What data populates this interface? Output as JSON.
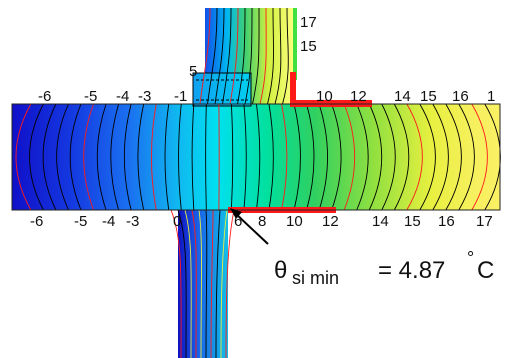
{
  "diagram": {
    "top_labels": [
      "-6",
      "-5",
      "-4",
      "-3",
      "-1",
      "10",
      "12",
      "14",
      "15",
      "16",
      "1"
    ],
    "bottom_labels": [
      "-6",
      "-5",
      "-4",
      "-3",
      "0",
      "6",
      "8",
      "10",
      "12",
      "14",
      "15",
      "16",
      "17"
    ],
    "upper_wall_labels": [
      "17",
      "15"
    ],
    "beam_label": "5",
    "formula": {
      "symbol": "θ",
      "subscript": "si min",
      "equals": "= 4.87",
      "degree": "°",
      "unit": "C"
    },
    "colors": {
      "cold": "#1414d8",
      "cool": "#00c8e6",
      "mid": "#40d060",
      "warm": "#f0f040",
      "hot": "#ffff90",
      "edge_insulation": "#ff2020",
      "isotherm_red": "#ff1a1a",
      "isotherm_black": "#000000"
    }
  }
}
